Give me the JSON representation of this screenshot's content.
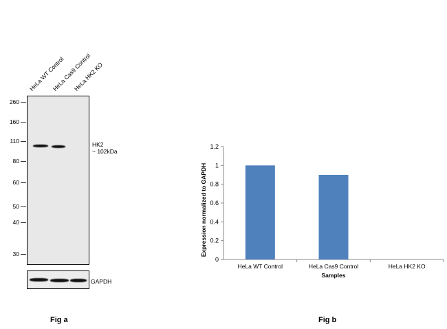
{
  "blot": {
    "lanes": [
      "HeLa WT Control",
      "HeLa Cas9 Control",
      "HeLa HK2 KO"
    ],
    "mw_markers": [
      "260",
      "160",
      "110",
      "80",
      "60",
      "50",
      "40",
      "30"
    ],
    "target_label": "HK2",
    "target_size": "~ 102kDa",
    "loading_control": "GAPDH",
    "caption": "Fig a"
  },
  "chart_caption": "Fig b",
  "chart_data": {
    "type": "bar",
    "categories": [
      "HeLa WT Control",
      "HeLa Cas9 Control",
      "HeLa HK2 KO"
    ],
    "values": [
      1.0,
      0.9,
      0.0
    ],
    "xlabel": "Samples",
    "ylabel": "Expression  normalized to GAPDH",
    "ylim": [
      0,
      1.2
    ],
    "yticks": [
      "0",
      "0.2",
      "0.4",
      "0.6",
      "0.8",
      "1",
      "1.2"
    ],
    "bar_color": "#4f81bd"
  }
}
